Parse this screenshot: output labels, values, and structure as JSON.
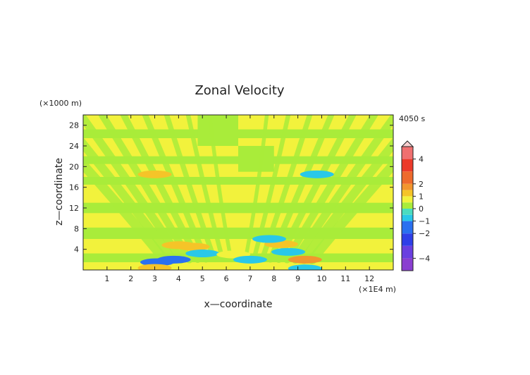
{
  "chart_data": {
    "type": "heatmap",
    "title": "Zonal Velocity",
    "time_label": "4050 s",
    "xlabel": "x—coordinate",
    "ylabel": "z—coordinate",
    "x_unit": "(×1E4 m)",
    "y_unit": "(×1000 m)",
    "xlim": [
      0,
      13
    ],
    "ylim": [
      0,
      30
    ],
    "x_ticks": [
      1,
      2,
      3,
      4,
      5,
      6,
      7,
      8,
      9,
      10,
      11,
      12
    ],
    "y_ticks": [
      4,
      8,
      12,
      16,
      20,
      24,
      28
    ],
    "colorbar": {
      "range": [
        -5,
        5
      ],
      "tick_labels": [
        "4",
        "2",
        "1",
        "0",
        "−1",
        "−2",
        "−4"
      ],
      "tick_values": [
        4,
        2,
        1,
        0,
        -1,
        -2,
        -4
      ],
      "colors": [
        {
          "v": -5,
          "c": "#8a3fd0"
        },
        {
          "v": -4,
          "c": "#6a3fe0"
        },
        {
          "v": -3,
          "c": "#2f3fe8"
        },
        {
          "v": -2,
          "c": "#2a70f0"
        },
        {
          "v": -1,
          "c": "#29c8e8"
        },
        {
          "v": -0.5,
          "c": "#4bdcc0"
        },
        {
          "v": 0,
          "c": "#a9ec3a"
        },
        {
          "v": 0.5,
          "c": "#f2f23c"
        },
        {
          "v": 1,
          "c": "#f5c428"
        },
        {
          "v": 1.5,
          "c": "#f2962e"
        },
        {
          "v": 2,
          "c": "#ee6a2c"
        },
        {
          "v": 3,
          "c": "#ec3a2a"
        },
        {
          "v": 4,
          "c": "#f07070"
        },
        {
          "v": 5,
          "c": "#f6b4b4"
        }
      ]
    },
    "features": [
      {
        "x": 3.1,
        "z": 1.5,
        "value": -1.2
      },
      {
        "x": 3.8,
        "z": 2.0,
        "value": -1.5
      },
      {
        "x": 4.6,
        "z": 4.5,
        "value": 1.2
      },
      {
        "x": 5.0,
        "z": 3.2,
        "value": -1.0
      },
      {
        "x": 3.0,
        "z": 0.4,
        "value": 1.0
      },
      {
        "x": 4.0,
        "z": 4.8,
        "value": 1.0
      },
      {
        "x": 3.0,
        "z": 18.5,
        "value": 1.0
      },
      {
        "x": 9.3,
        "z": 2.0,
        "value": 1.5
      },
      {
        "x": 8.6,
        "z": 3.5,
        "value": -1.0
      },
      {
        "x": 8.3,
        "z": 5.0,
        "value": 1.0
      },
      {
        "x": 7.8,
        "z": 6.0,
        "value": -0.8
      },
      {
        "x": 9.8,
        "z": 18.5,
        "value": -0.8
      },
      {
        "x": 9.3,
        "z": 0.3,
        "value": -0.8
      },
      {
        "x": 6.3,
        "z": 3.0,
        "value": 0.8
      },
      {
        "x": 7.0,
        "z": 2.0,
        "value": -0.8
      }
    ]
  }
}
